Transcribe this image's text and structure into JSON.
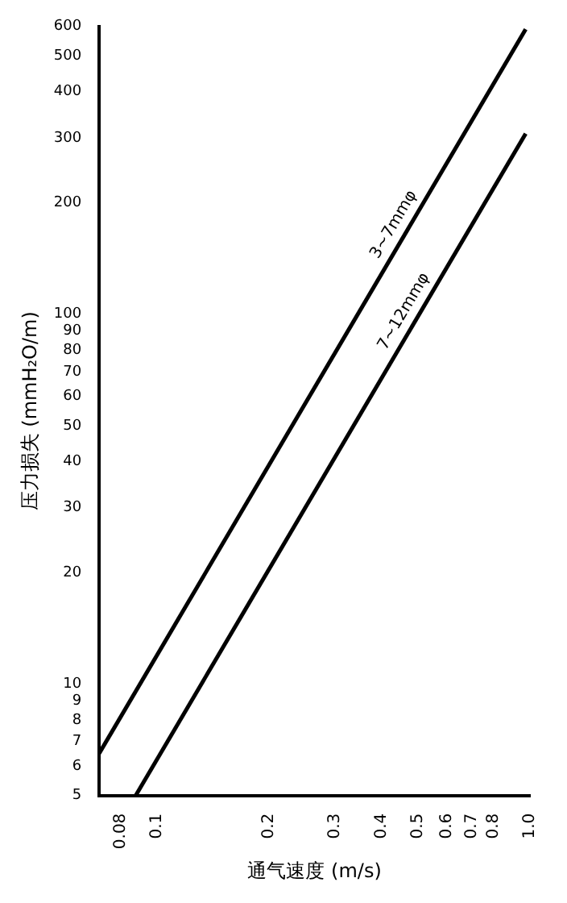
{
  "chart_data": {
    "type": "line",
    "xlabel": "通气速度 (m/s)",
    "ylabel": "压力损失 (mmH₂O/m)",
    "log": "xy",
    "grid": false,
    "legend": false,
    "marker": "none",
    "line_style": "solid",
    "xlim": [
      0.07,
      1.0
    ],
    "xticks": [
      0.08,
      0.1,
      0.2,
      0.3,
      0.4,
      0.5,
      0.6,
      0.7,
      0.8,
      {
        "value": 1,
        "label": "1.0"
      }
    ],
    "ylim": [
      5,
      600
    ],
    "yticks": [
      5,
      6,
      7,
      8,
      9,
      10,
      20,
      30,
      40,
      50,
      60,
      70,
      80,
      90,
      100,
      200,
      300,
      400,
      500,
      600
    ],
    "series": [
      {
        "name": "3~7mmφ",
        "color": "#000000",
        "x": [
          0.07,
          0.974
        ],
        "values": [
          6.5,
          590
        ]
      },
      {
        "name": "7~12mmφ",
        "color": "#000000",
        "x": [
          0.0877,
          0.974
        ],
        "values": [
          5,
          308
        ]
      }
    ]
  }
}
